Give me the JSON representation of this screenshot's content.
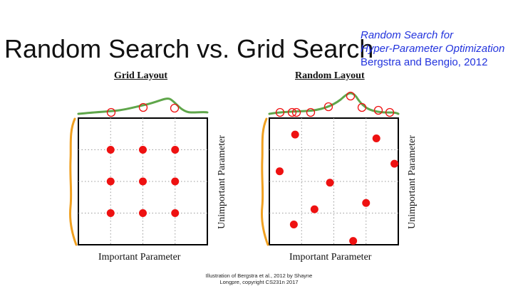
{
  "slide": {
    "title": "Random Search vs. Grid Search",
    "citation": {
      "line1": "Random Search for",
      "line2": "Hyper-Parameter Optimization",
      "line3": "Bergstra and Bengio, 2012"
    },
    "footer": {
      "line1": "Illustration of Bergstra et al., 2012 by Shayne",
      "line2": "Longpre, copyright CS231n 2017"
    }
  },
  "panels": [
    {
      "title": "Grid Layout",
      "xlabel": "Important Parameter",
      "ylabel": "Unimportant Parameter",
      "points": [
        [
          0.25,
          0.75
        ],
        [
          0.5,
          0.75
        ],
        [
          0.75,
          0.75
        ],
        [
          0.25,
          0.5
        ],
        [
          0.5,
          0.5
        ],
        [
          0.75,
          0.5
        ],
        [
          0.25,
          0.25
        ],
        [
          0.5,
          0.25
        ],
        [
          0.75,
          0.25
        ]
      ]
    },
    {
      "title": "Random Layout",
      "xlabel": "Important Parameter",
      "ylabel": "Unimportant Parameter",
      "points": [
        [
          0.2,
          0.87
        ],
        [
          0.83,
          0.84
        ],
        [
          0.97,
          0.64
        ],
        [
          0.08,
          0.58
        ],
        [
          0.47,
          0.49
        ],
        [
          0.75,
          0.33
        ],
        [
          0.35,
          0.28
        ],
        [
          0.19,
          0.16
        ],
        [
          0.65,
          0.03
        ]
      ]
    }
  ],
  "colors": {
    "point": "#ee1111",
    "top_curve": "#5fa64a",
    "side_curve": "#f0a020",
    "citation": "#2233dd"
  }
}
